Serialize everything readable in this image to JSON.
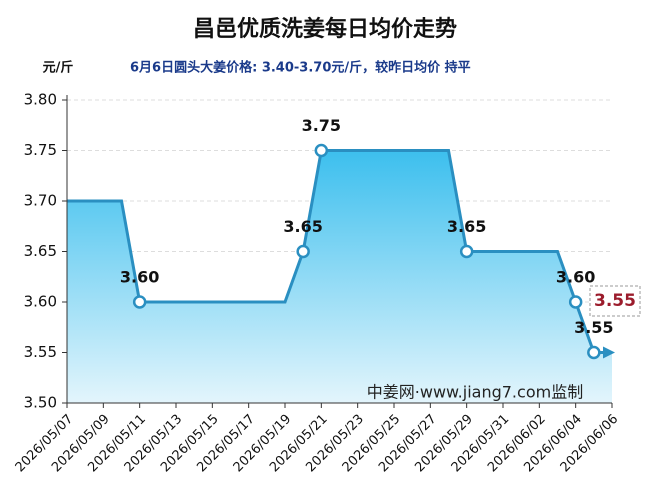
{
  "chart_data": {
    "type": "area",
    "title": "昌邑优质洗姜每日均价走势",
    "y_unit": "元/斤",
    "subtitle": "6月6日圆头大姜价格: 3.40-3.70元/斤，较昨日均价 持平",
    "watermark": "中姜网·www.jiang7.com监制",
    "categories": [
      "2026/05/07",
      null,
      "2026/05/09",
      null,
      "2026/05/11",
      null,
      "2026/05/13",
      null,
      "2026/05/15",
      null,
      "2026/05/17",
      null,
      "2026/05/19",
      null,
      "2026/05/21",
      null,
      "2026/05/23",
      null,
      "2026/05/25",
      null,
      "2026/05/27",
      null,
      "2026/05/29",
      null,
      "2026/05/31",
      null,
      "2026/06/02",
      null,
      "2026/06/04",
      null,
      "2026/06/06"
    ],
    "values": [
      3.7,
      3.7,
      3.7,
      3.7,
      3.6,
      3.6,
      3.6,
      3.6,
      3.6,
      3.6,
      3.6,
      3.6,
      3.6,
      3.65,
      3.75,
      3.75,
      3.75,
      3.75,
      3.75,
      3.75,
      3.75,
      3.75,
      3.65,
      3.65,
      3.65,
      3.65,
      3.65,
      3.65,
      3.6,
      3.55,
      3.55
    ],
    "value_labels": [
      null,
      null,
      null,
      null,
      "3.60",
      null,
      null,
      null,
      null,
      null,
      null,
      null,
      null,
      "3.65",
      "3.75",
      null,
      null,
      null,
      null,
      null,
      null,
      null,
      "3.65",
      null,
      null,
      null,
      null,
      null,
      "3.60",
      "3.55",
      "3.55"
    ],
    "color": "#2a8fc1",
    "ylim": [
      3.5,
      3.8
    ],
    "yticks": [
      {
        "value": 3.5,
        "label": "3.50"
      },
      {
        "value": 3.55,
        "label": "3.55"
      },
      {
        "value": 3.6,
        "label": "3.60"
      },
      {
        "value": 3.65,
        "label": "3.65"
      },
      {
        "value": 3.7,
        "label": "3.70"
      },
      {
        "value": 3.75,
        "label": "3.75"
      },
      {
        "value": 3.8,
        "label": "3.80"
      }
    ],
    "grid": true
  }
}
